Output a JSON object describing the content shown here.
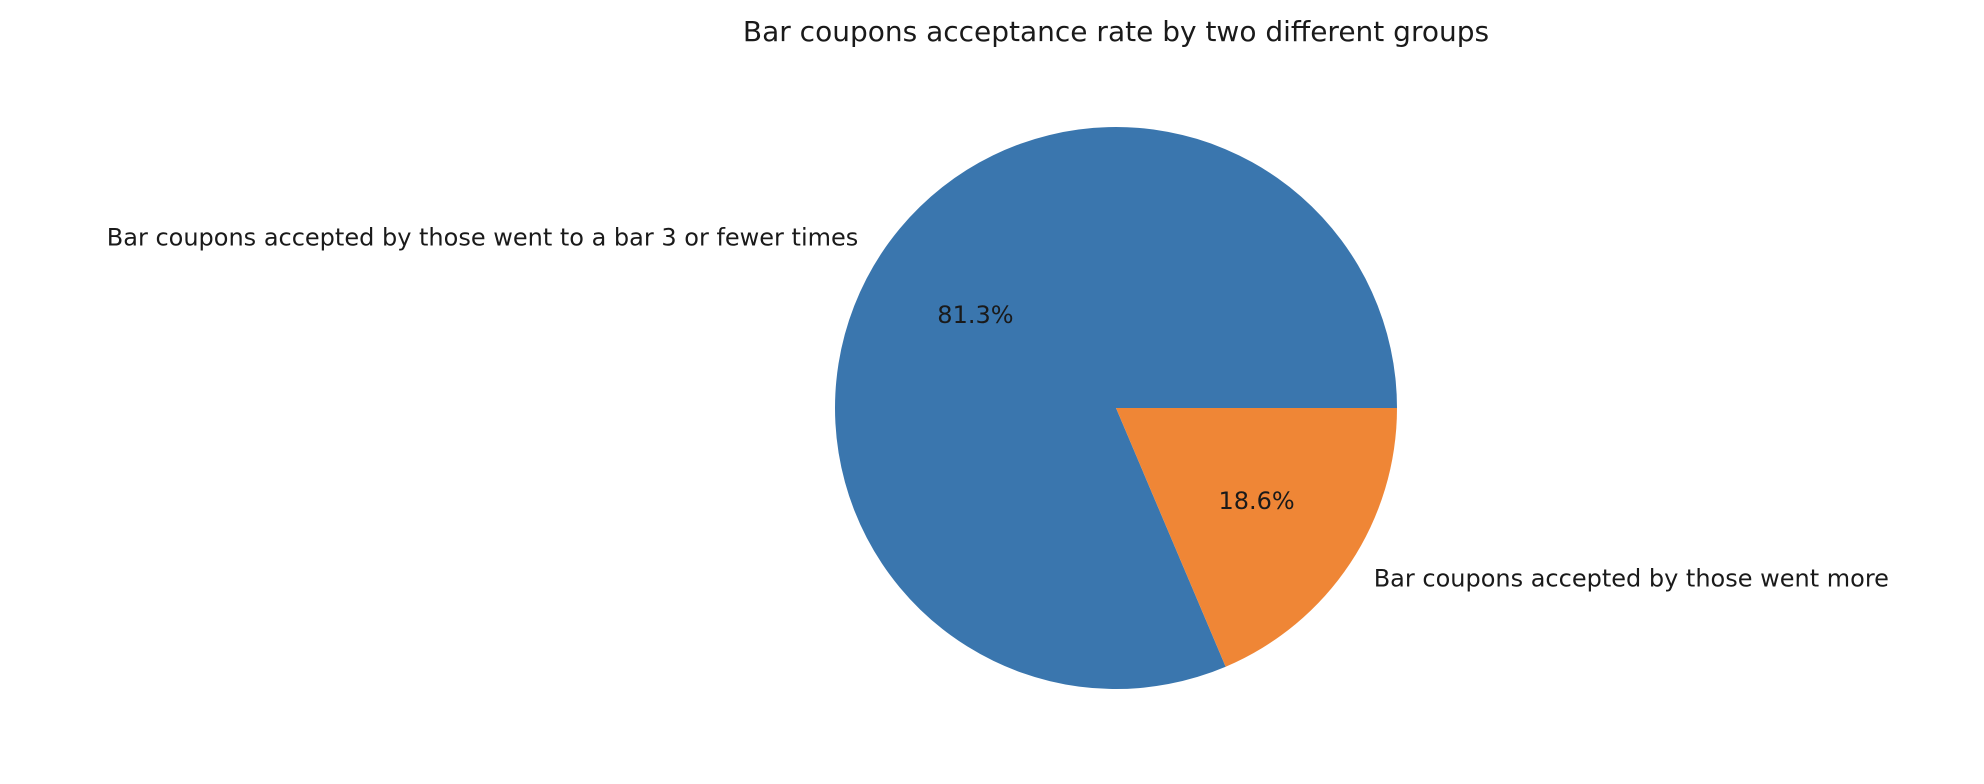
{
  "chart_data": {
    "type": "pie",
    "title": "Bar coupons acceptance rate by two different groups",
    "start_angle": 0,
    "direction": "counterclockwise",
    "slices": [
      {
        "label": "Bar coupons accepted by those went to a bar 3 or fewer times",
        "value": 81.3,
        "pct_label": "81.3%",
        "color": "#3a76ae"
      },
      {
        "label": "Bar coupons accepted by those went more",
        "value": 18.6,
        "pct_label": "18.6%",
        "color": "#ef8636"
      }
    ]
  }
}
